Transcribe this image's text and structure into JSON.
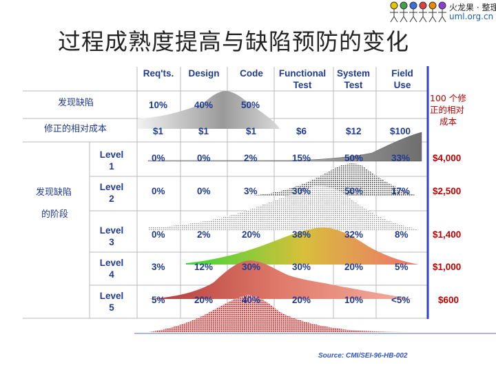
{
  "title": "过程成熟度提高与缺陷预防的变化",
  "logo": {
    "line1": "火龙果 · 整理",
    "line2": "uml.org.cn"
  },
  "headers": [
    {
      "line1": "Req'ts.",
      "line2": ""
    },
    {
      "line1": "Design",
      "line2": ""
    },
    {
      "line1": "Code",
      "line2": ""
    },
    {
      "line1": "Functional",
      "line2": "Test"
    },
    {
      "line1": "System",
      "line2": "Test"
    },
    {
      "line1": "Field",
      "line2": "Use"
    }
  ],
  "left_labels": {
    "defects_found": "发现缺陷",
    "relative_cost": "修正的相对成本",
    "stage_line1": "发现缺陷",
    "stage_line2": "的阶段"
  },
  "right_header": {
    "line1": "100 个修",
    "line2": "正的相对",
    "line3": "成本"
  },
  "top_rows": {
    "found": [
      "10%",
      "40%",
      "50%"
    ],
    "cost": [
      "$1",
      "$1",
      "$1",
      "$6",
      "$12",
      "$100"
    ]
  },
  "levels": [
    {
      "line1": "Level",
      "line2": "1",
      "values": [
        "0%",
        "0%",
        "2%",
        "15%",
        "50%",
        "33%"
      ],
      "cost": "$4,000"
    },
    {
      "line1": "Level",
      "line2": "2",
      "values": [
        "0%",
        "0%",
        "3%",
        "30%",
        "50%",
        "17%"
      ],
      "cost": "$2,500"
    },
    {
      "line1": "Level",
      "line2": "3",
      "values": [
        "0%",
        "2%",
        "20%",
        "38%",
        "32%",
        "8%"
      ],
      "cost": "$1,400"
    },
    {
      "line1": "Level",
      "line2": "4",
      "values": [
        "3%",
        "12%",
        "30%",
        "30%",
        "20%",
        "5%"
      ],
      "cost": "$1,000"
    },
    {
      "line1": "Level",
      "line2": "5",
      "values": [
        "5%",
        "20%",
        "40%",
        "20%",
        "10%",
        "<5%"
      ],
      "cost": "$600"
    }
  ],
  "colors": {
    "blue": "#1f3a93",
    "red": "#c00000",
    "divider": "#2b3fd6"
  },
  "source": "Source: CMI/SEI-96-HB-002"
}
